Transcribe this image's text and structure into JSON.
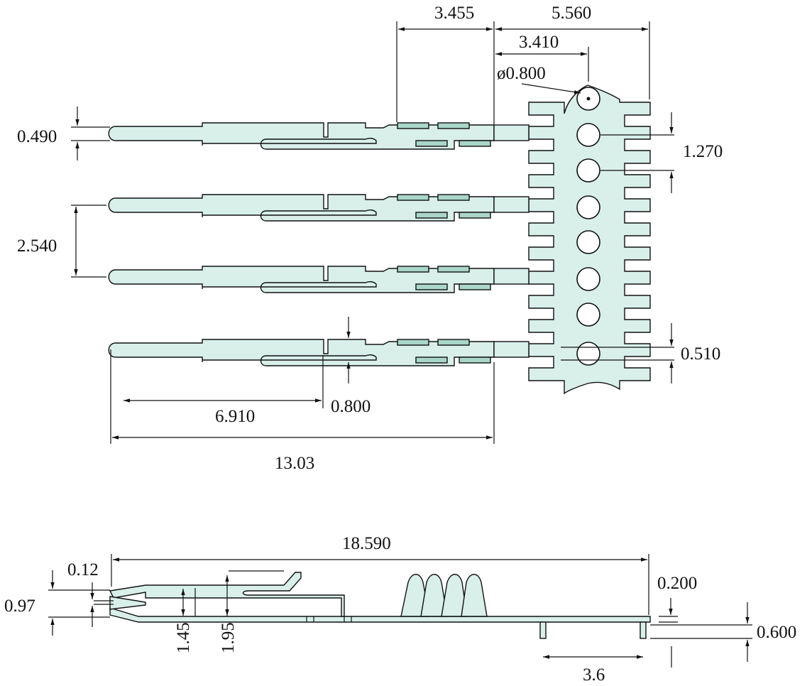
{
  "colors": {
    "part_fill": "#d8efea",
    "pad_fill": "#a9d6c9",
    "outline": "#111111",
    "background": "#ffffff"
  },
  "top_view": {
    "dimensions": {
      "d_3_455": "3.455",
      "d_5_560": "5.560",
      "d_3_410": "3.410",
      "d_hole_dia": "ø0.800",
      "d_0_490": "0.490",
      "d_1_270": "1.270",
      "d_2_540": "2.540",
      "d_0_510": "0.510",
      "d_0_800": "0.800",
      "d_6_910": "6.910",
      "d_13_03": "13.03"
    },
    "pin_count": 4,
    "carrier_hole_count": 8
  },
  "side_view": {
    "dimensions": {
      "d_18_590": "18.590",
      "d_0_12": "0.12",
      "d_0_97": "0.97",
      "d_1_45": "1.45",
      "d_1_95": "1.95",
      "d_0_200": "0.200",
      "d_0_600": "0.600",
      "d_3_6": "3.6"
    }
  }
}
